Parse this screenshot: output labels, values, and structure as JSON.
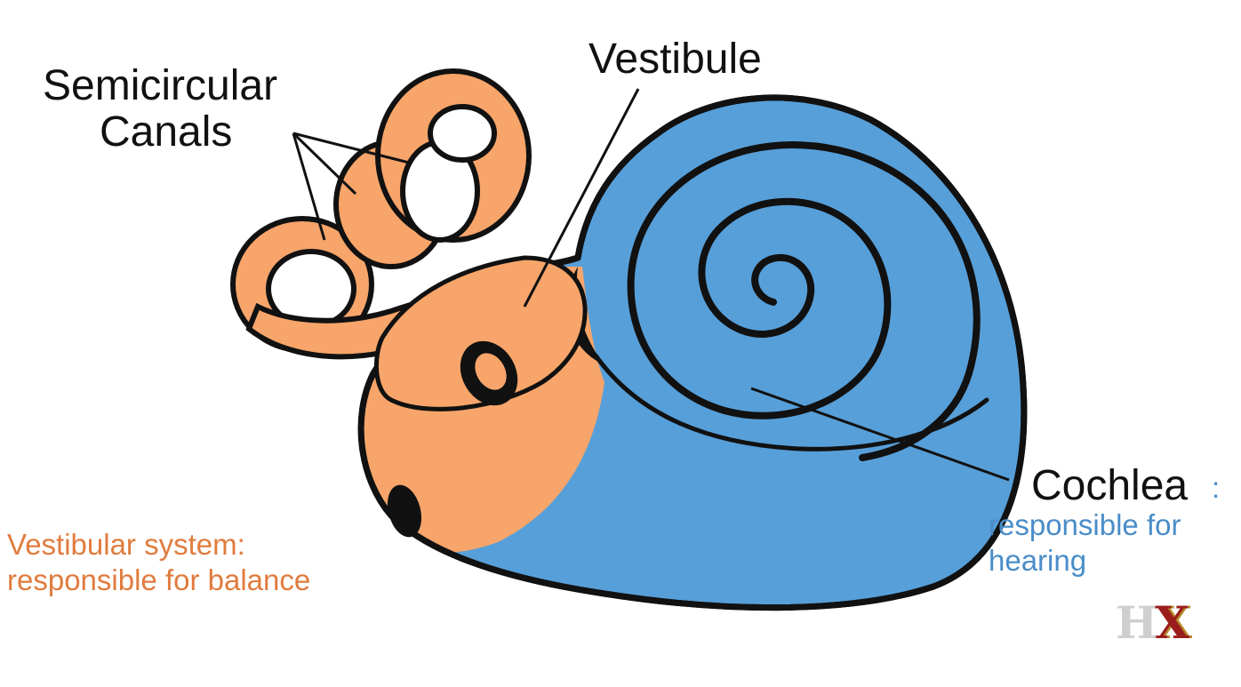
{
  "labels": {
    "semicircular_line1": "Semicircular",
    "semicircular_line2": "Canals",
    "vestibule": "Vestibule",
    "cochlea": "Cochlea",
    "cochlea_colon": ":",
    "cochlea_desc_line1": "responsible for",
    "cochlea_desc_line2": "hearing",
    "vestibular_line1": "Vestibular system:",
    "vestibular_line2": "responsible for balance"
  },
  "logo": {
    "letter1": "H",
    "letter2": "X"
  },
  "colors": {
    "vestibular_orange": "#F7A56A",
    "cochlea_blue": "#579FD9",
    "vestibular_text": "#E07C3E",
    "cochlea_text": "#4A8DC8",
    "outline": "#111111",
    "logo_gray": "#cfcfcf",
    "logo_red": "#9b1c1c",
    "logo_gold": "#b58a2a"
  }
}
